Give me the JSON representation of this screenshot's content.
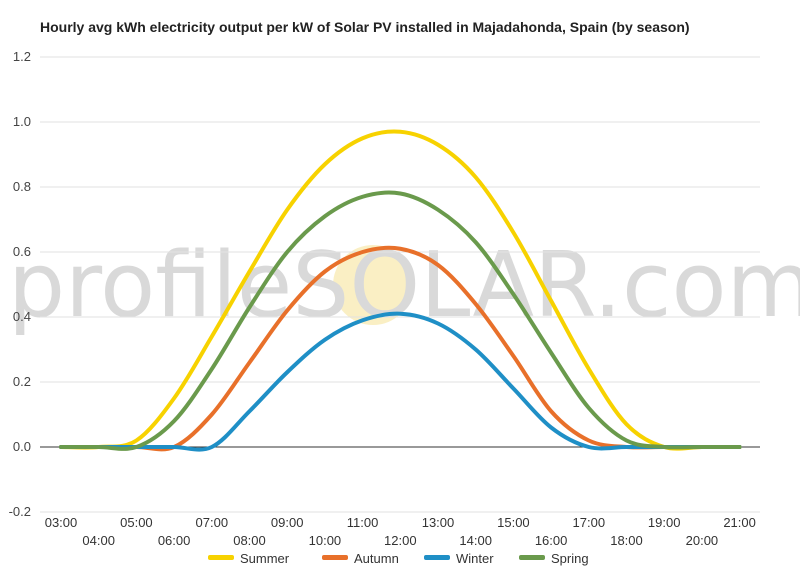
{
  "chart_data": {
    "type": "line",
    "title": "Hourly avg kWh electricity output per kW of Solar PV installed in Majadahonda, Spain (by season)",
    "watermark": "profileSOLAR.com",
    "xlabel": "",
    "ylabel": "",
    "ylim": [
      -0.2,
      1.2
    ],
    "yticks": [
      "1.2",
      "1.0",
      "0.8",
      "0.6",
      "0.4",
      "0.2",
      "0.0",
      "-0.2"
    ],
    "ytick_values": [
      1.2,
      1.0,
      0.8,
      0.6,
      0.4,
      0.2,
      0.0,
      -0.2
    ],
    "x": [
      "03:00",
      "04:00",
      "05:00",
      "06:00",
      "07:00",
      "08:00",
      "09:00",
      "10:00",
      "11:00",
      "12:00",
      "13:00",
      "14:00",
      "15:00",
      "16:00",
      "17:00",
      "18:00",
      "19:00",
      "20:00",
      "21:00"
    ],
    "grid": true,
    "legend_position": "bottom",
    "series": [
      {
        "name": "Summer",
        "color": "#f7d200",
        "values": [
          0.0,
          0.0,
          0.02,
          0.15,
          0.34,
          0.54,
          0.73,
          0.87,
          0.95,
          0.97,
          0.93,
          0.83,
          0.66,
          0.45,
          0.24,
          0.07,
          0.0,
          0.0,
          0.0
        ]
      },
      {
        "name": "Autumn",
        "color": "#e8702a",
        "values": [
          0.0,
          0.0,
          0.0,
          0.0,
          0.1,
          0.26,
          0.42,
          0.54,
          0.6,
          0.61,
          0.56,
          0.44,
          0.28,
          0.11,
          0.02,
          0.0,
          0.0,
          0.0,
          0.0
        ]
      },
      {
        "name": "Winter",
        "color": "#1f8fc6",
        "values": [
          0.0,
          0.0,
          0.0,
          0.0,
          0.0,
          0.11,
          0.23,
          0.33,
          0.39,
          0.41,
          0.38,
          0.3,
          0.18,
          0.06,
          0.0,
          0.0,
          0.0,
          0.0,
          0.0
        ]
      },
      {
        "name": "Spring",
        "color": "#6a9a4c",
        "values": [
          0.0,
          0.0,
          0.0,
          0.08,
          0.24,
          0.43,
          0.6,
          0.71,
          0.77,
          0.78,
          0.73,
          0.63,
          0.47,
          0.29,
          0.12,
          0.02,
          0.0,
          0.0,
          0.0
        ]
      }
    ]
  }
}
